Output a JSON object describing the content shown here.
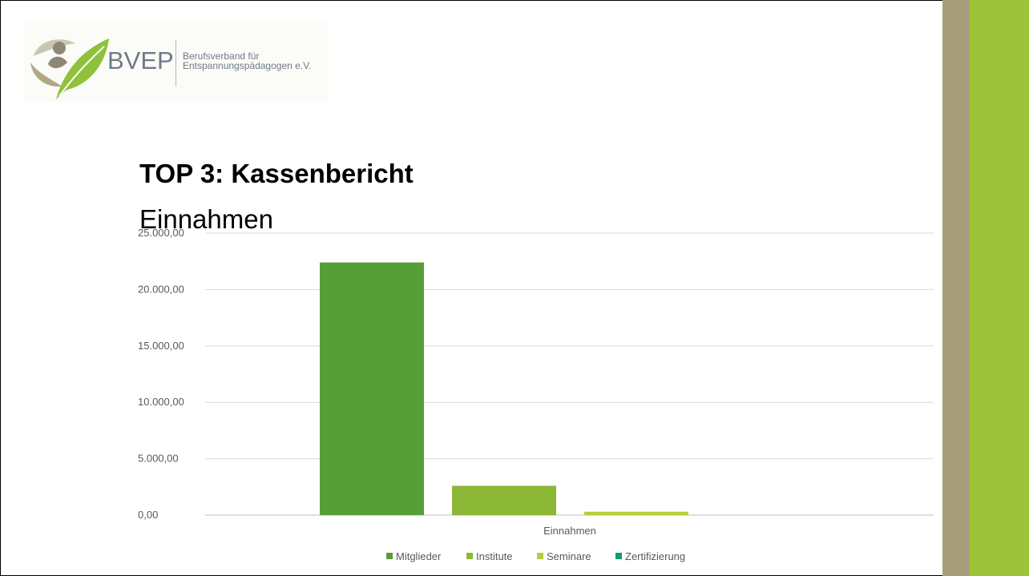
{
  "colors": {
    "stripe_tan": "#a89e7c",
    "stripe_green": "#9dc33b"
  },
  "logo": {
    "wordmark": "BVEP",
    "tagline_line1": "Berufsverband für",
    "tagline_line2": "Entspannungspädagogen e.V."
  },
  "slide": {
    "title": "TOP 3: Kassenbericht",
    "subtitle": "Einnahmen"
  },
  "chart_data": {
    "type": "bar",
    "categories": [
      "Einnahmen"
    ],
    "series": [
      {
        "name": "Mitglieder",
        "values": [
          22400
        ],
        "color": "#559e38"
      },
      {
        "name": "Institute",
        "values": [
          2600
        ],
        "color": "#8db736"
      },
      {
        "name": "Seminare",
        "values": [
          300
        ],
        "color": "#b5cf3c"
      },
      {
        "name": "Zertifizierung",
        "values": [
          0
        ],
        "color": "#0f9a78"
      }
    ],
    "y_ticks": [
      "0,00",
      "5.000,00",
      "10.000,00",
      "15.000,00",
      "20.000,00",
      "25.000,00"
    ],
    "ylim": [
      0,
      25000
    ],
    "grid": true,
    "legend_position": "bottom"
  }
}
